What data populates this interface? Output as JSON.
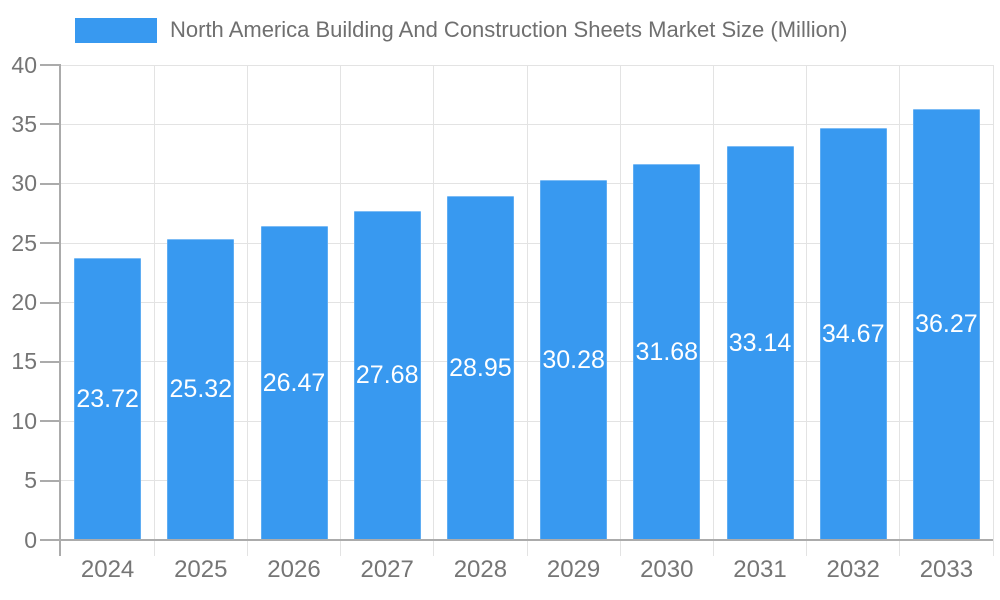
{
  "chart_data": {
    "type": "bar",
    "title": "North America Building And Construction Sheets Market Size (Million)",
    "categories": [
      "2024",
      "2025",
      "2026",
      "2027",
      "2028",
      "2029",
      "2030",
      "2031",
      "2032",
      "2033"
    ],
    "values": [
      23.72,
      25.32,
      26.47,
      27.68,
      28.95,
      30.28,
      31.68,
      33.14,
      34.67,
      36.27
    ],
    "value_label_decimals": 2,
    "xlabel": "",
    "ylabel": "",
    "ylim": [
      0,
      40
    ],
    "yticks": [
      0,
      5,
      10,
      15,
      20,
      25,
      30,
      35,
      40
    ],
    "grid": true,
    "legend_position": "top-left",
    "value_labels_inside_bars": true,
    "colors": {
      "bar": "#3899f0",
      "grid": "#e3e3e3",
      "axis": "#ababab",
      "tick_label": "#757575",
      "title": "#6f6f6f",
      "value_label": "#ffffff",
      "background": "#ffffff"
    }
  }
}
